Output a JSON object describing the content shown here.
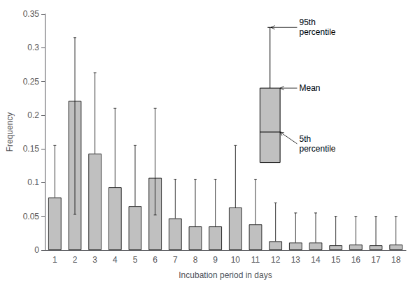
{
  "chart_data": {
    "type": "bar",
    "x_label": "Incubation period in days",
    "y_label": "Frequency",
    "categories": [
      "1",
      "2",
      "3",
      "4",
      "5",
      "6",
      "7",
      "8",
      "9",
      "10",
      "11",
      "12",
      "13",
      "14",
      "15",
      "16",
      "17",
      "18"
    ],
    "values": [
      0.078,
      0.221,
      0.143,
      0.093,
      0.065,
      0.107,
      0.047,
      0.035,
      0.035,
      0.063,
      0.038,
      0.013,
      0.011,
      0.011,
      0.007,
      0.008,
      0.007,
      0.008
    ],
    "error_upper": [
      0.155,
      0.315,
      0.263,
      0.21,
      0.155,
      0.21,
      0.105,
      0.105,
      0.105,
      0.155,
      0.105,
      0.07,
      0.055,
      0.055,
      0.05,
      0.05,
      0.05,
      0.05
    ],
    "error_lower": [
      0.0,
      0.053,
      0.0,
      0.0,
      0.0,
      0.052,
      0.0,
      0.0,
      0.0,
      0.0,
      0.0,
      0.0,
      0.0,
      0.0,
      0.0,
      0.0,
      0.0,
      0.0
    ],
    "color": "#c0c0c0",
    "ylim": [
      0,
      0.35
    ],
    "yticks": [
      0,
      0.05,
      0.1,
      0.15,
      0.2,
      0.25,
      0.3,
      0.35
    ],
    "grid": false,
    "annotations": [
      "95th\npercentile",
      "Mean",
      "5th\npercentile"
    ]
  }
}
